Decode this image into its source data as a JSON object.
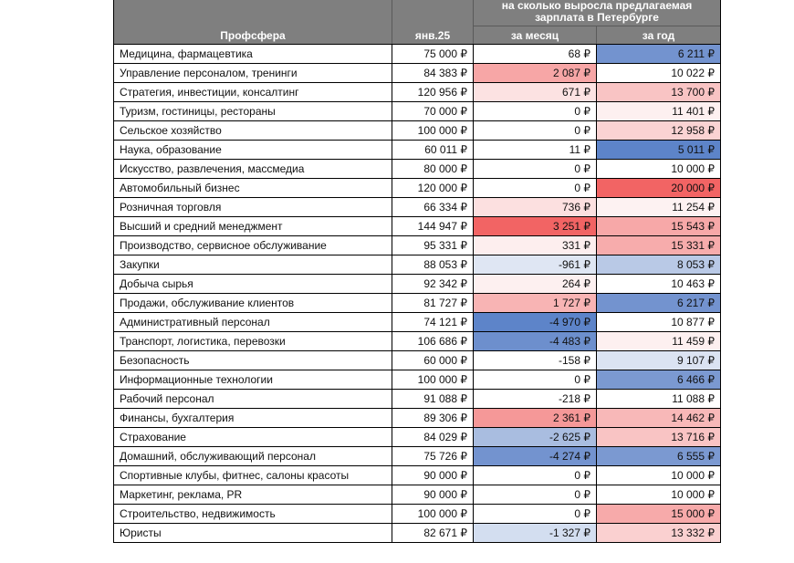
{
  "header": {
    "prof_label": "Профсфера",
    "jan_label": "янв.25",
    "group_line1": "на сколько выросла предлагаемая",
    "group_line2": "зарплата в Петербурге",
    "month_label": "за месяц",
    "year_label": "за год"
  },
  "rows": [
    {
      "name": "Медицина, фармацевтика",
      "jan": "75 000 ₽",
      "month": "68 ₽",
      "month_color": "#ffffff",
      "year": "6 211 ₽",
      "year_color": "#7393cf"
    },
    {
      "name": "Управление персоналом, тренинги",
      "jan": "84 383 ₽",
      "month": "2 087 ₽",
      "month_color": "#f7a6a6",
      "year": "10 022 ₽",
      "year_color": "#ffffff"
    },
    {
      "name": "Стратегия, инвестиции, консалтинг",
      "jan": "120 956 ₽",
      "month": "671 ₽",
      "month_color": "#fce2e2",
      "year": "13 700 ₽",
      "year_color": "#f9c4c4"
    },
    {
      "name": "Туризм, гостиницы, рестораны",
      "jan": "70 000 ₽",
      "month": "0 ₽",
      "month_color": "#ffffff",
      "year": "11 401 ₽",
      "year_color": "#fdf0f0"
    },
    {
      "name": "Сельское хозяйство",
      "jan": "100 000 ₽",
      "month": "0 ₽",
      "month_color": "#ffffff",
      "year": "12 958 ₽",
      "year_color": "#fad3d3"
    },
    {
      "name": "Наука, образование",
      "jan": "60 011 ₽",
      "month": "11 ₽",
      "month_color": "#ffffff",
      "year": "5 011 ₽",
      "year_color": "#5d84c9"
    },
    {
      "name": "Искусство, развлечения, массмедиа",
      "jan": "80 000 ₽",
      "month": "0 ₽",
      "month_color": "#ffffff",
      "year": "10 000 ₽",
      "year_color": "#ffffff"
    },
    {
      "name": "Автомобильный бизнес",
      "jan": "120 000 ₽",
      "month": "0 ₽",
      "month_color": "#ffffff",
      "year": "20 000 ₽",
      "year_color": "#f26464"
    },
    {
      "name": "Розничная торговля",
      "jan": "66 334 ₽",
      "month": "736 ₽",
      "month_color": "#fce0e0",
      "year": "11 254 ₽",
      "year_color": "#fdf2f2"
    },
    {
      "name": "Высший и средний менеджмент",
      "jan": "144 947 ₽",
      "month": "3 251 ₽",
      "month_color": "#f26464",
      "year": "15 543 ₽",
      "year_color": "#f7a8a8"
    },
    {
      "name": "Производство, сервисное обслуживание",
      "jan": "95 331 ₽",
      "month": "331 ₽",
      "month_color": "#fdeeee",
      "year": "15 331 ₽",
      "year_color": "#f7acac"
    },
    {
      "name": "Закупки",
      "jan": "88 053 ₽",
      "month": "-961 ₽",
      "month_color": "#dfe6f3",
      "year": "8 053 ₽",
      "year_color": "#b9c9e6"
    },
    {
      "name": "Добыча сырья",
      "jan": "92 342 ₽",
      "month": "264 ₽",
      "month_color": "#fdf0f0",
      "year": "10 463 ₽",
      "year_color": "#ffffff"
    },
    {
      "name": "Продажи, обслуживание клиентов",
      "jan": "81 727 ₽",
      "month": "1 727 ₽",
      "month_color": "#f8b4b4",
      "year": "6 217 ₽",
      "year_color": "#7393cf"
    },
    {
      "name": "Административный персонал",
      "jan": "74 121 ₽",
      "month": "-4 970 ₽",
      "month_color": "#5d84c9",
      "year": "10 877 ₽",
      "year_color": "#ffffff"
    },
    {
      "name": "Транспорт, логистика, перевозки",
      "jan": "106 686 ₽",
      "month": "-4 483 ₽",
      "month_color": "#6d8fcd",
      "year": "11 459 ₽",
      "year_color": "#fdf0f0"
    },
    {
      "name": "Безопасность",
      "jan": "60 000 ₽",
      "month": "-158 ₽",
      "month_color": "#ffffff",
      "year": "9 107 ₽",
      "year_color": "#dbe3f2"
    },
    {
      "name": "Информационные технологии",
      "jan": "100 000 ₽",
      "month": "0 ₽",
      "month_color": "#ffffff",
      "year": "6 466 ₽",
      "year_color": "#7b99d1"
    },
    {
      "name": "Рабочий персонал",
      "jan": "91 088 ₽",
      "month": "-218 ₽",
      "month_color": "#ffffff",
      "year": "11 088 ₽",
      "year_color": "#ffffff"
    },
    {
      "name": "Финансы, бухгалтерия",
      "jan": "89 306 ₽",
      "month": "2 361 ₽",
      "month_color": "#f59898",
      "year": "14 462 ₽",
      "year_color": "#f8b8b8"
    },
    {
      "name": "Страхование",
      "jan": "84 029 ₽",
      "month": "-2 625 ₽",
      "month_color": "#a9bde0",
      "year": "13 716 ₽",
      "year_color": "#f9c4c4"
    },
    {
      "name": "Домашний, обслуживающий персонал",
      "jan": "75 726 ₽",
      "month": "-4 274 ₽",
      "month_color": "#7393cf",
      "year": "6 555 ₽",
      "year_color": "#7b99d1"
    },
    {
      "name": "Спортивные клубы, фитнес, салоны красоты",
      "jan": "90 000 ₽",
      "month": "0 ₽",
      "month_color": "#ffffff",
      "year": "10 000 ₽",
      "year_color": "#ffffff"
    },
    {
      "name": "Маркетинг, реклама, PR",
      "jan": "90 000 ₽",
      "month": "0 ₽",
      "month_color": "#ffffff",
      "year": "10 000 ₽",
      "year_color": "#ffffff"
    },
    {
      "name": "Строительство, недвижимость",
      "jan": "100 000 ₽",
      "month": "0 ₽",
      "month_color": "#ffffff",
      "year": "15 000 ₽",
      "year_color": "#f7aaaa"
    },
    {
      "name": "Юристы",
      "jan": "82 671 ₽",
      "month": "-1 327 ₽",
      "month_color": "#d3def0",
      "year": "13 332 ₽",
      "year_color": "#fad0d0"
    }
  ]
}
